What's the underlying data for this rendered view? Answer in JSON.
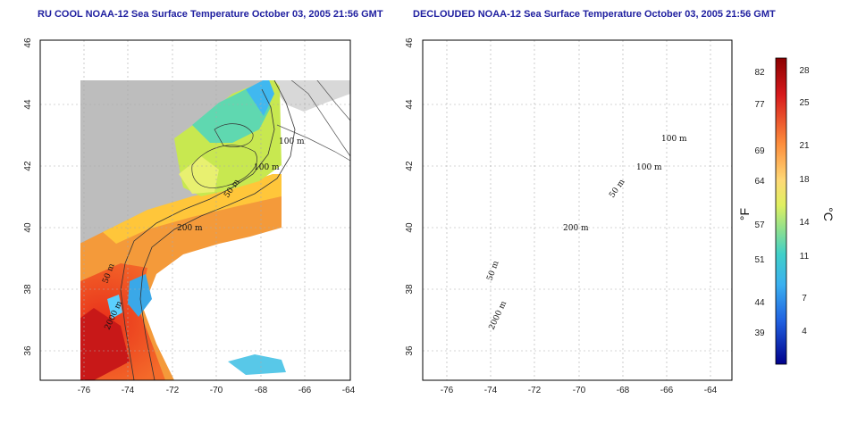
{
  "panels": [
    {
      "title": "RU COOL NOAA-12 Sea Surface Temperature October 03, 2005 21:56 GMT",
      "x_ticks": [
        "-76",
        "-74",
        "-72",
        "-70",
        "-68",
        "-66",
        "-64"
      ],
      "y_ticks": [
        "36",
        "38",
        "40",
        "42",
        "44",
        "46"
      ],
      "contour_labels": [
        "100 m",
        "100 m",
        "50 m",
        "200 m",
        "50 m",
        "2000 m"
      ]
    },
    {
      "title": "DECLOUDED NOAA-12 Sea Surface Temperature October 03, 2005 21:56 GMT",
      "x_ticks": [
        "-76",
        "-74",
        "-72",
        "-70",
        "-68",
        "-66",
        "-64"
      ],
      "y_ticks": [
        "36",
        "38",
        "40",
        "42",
        "44",
        "46"
      ],
      "contour_labels": [
        "100 m",
        "100 m",
        "50 m",
        "200 m",
        "50 m",
        "2000 m"
      ]
    }
  ],
  "colorbar": {
    "f_label": "°F",
    "c_label": "°C",
    "f_ticks": [
      "82",
      "77",
      "69",
      "64",
      "57",
      "51",
      "44",
      "39"
    ],
    "c_ticks": [
      "28",
      "25",
      "21",
      "18",
      "14",
      "11",
      "7",
      "4"
    ]
  },
  "colors": {
    "land": "#bdbdbd",
    "title": "#2020a0",
    "grid": "#aaaaaa"
  }
}
